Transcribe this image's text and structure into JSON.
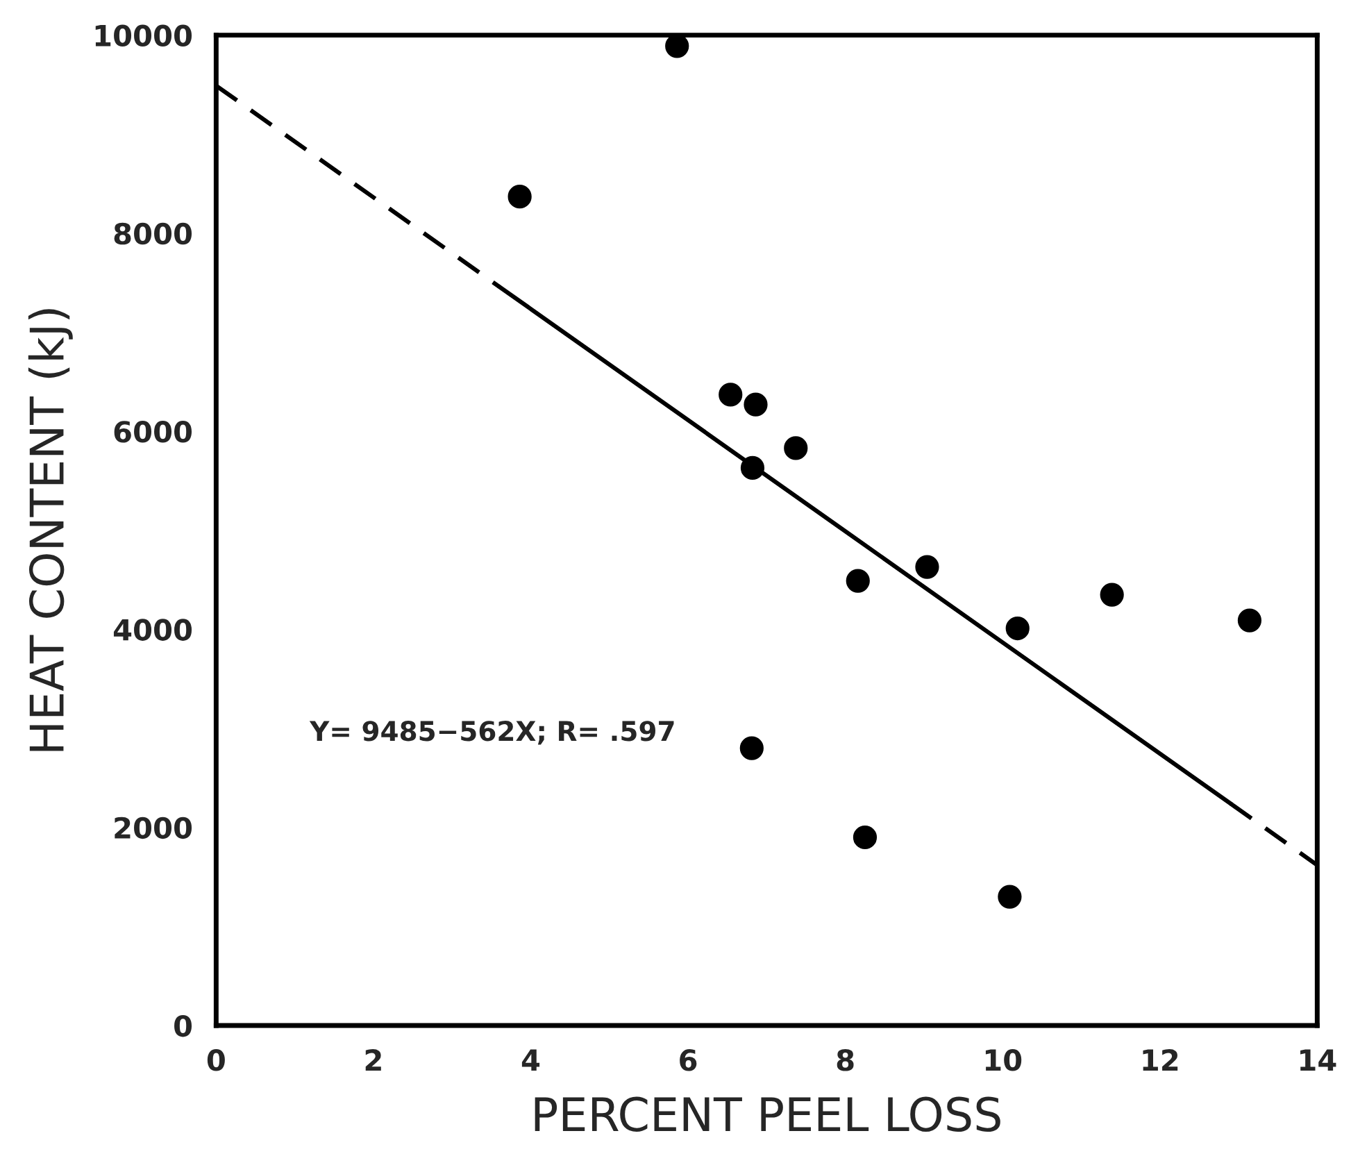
{
  "chart_data": {
    "type": "scatter",
    "xlabel": "PERCENT PEEL LOSS",
    "ylabel": "HEAT CONTENT (kJ)",
    "xlim": [
      0,
      14
    ],
    "xticks": [
      0,
      2,
      4,
      6,
      8,
      10,
      12,
      14
    ],
    "ylim": [
      0,
      10000
    ],
    "yticks": [
      0,
      2000,
      4000,
      6000,
      8000,
      10000
    ],
    "grid": false,
    "marker": "circle",
    "series": [
      {
        "color": "#000000",
        "x": [
          5.86,
          3.86,
          6.54,
          6.86,
          7.37,
          6.82,
          8.16,
          9.04,
          11.39,
          10.19,
          13.14,
          6.81,
          8.25,
          10.09
        ],
        "values": [
          9890,
          8370,
          6370,
          6270,
          5830,
          5630,
          4490,
          4630,
          4350,
          4010,
          4090,
          2800,
          1900,
          1300
        ]
      },
      {
        "type": "line",
        "color": "#000000",
        "line_style": "dashed",
        "marker": "none",
        "x": [
          0,
          3.6
        ],
        "values": [
          9490,
          7460
        ]
      },
      {
        "type": "line",
        "color": "#000000",
        "line_style": "solid",
        "marker": "none",
        "x": [
          3.6,
          12.9
        ],
        "values": [
          7460,
          2240
        ]
      },
      {
        "type": "line",
        "color": "#000000",
        "line_style": "dashed",
        "marker": "none",
        "x": [
          12.9,
          14
        ],
        "values": [
          2240,
          1620
        ]
      }
    ],
    "annotations": [
      "Y= 9485−562X; R= .597"
    ]
  }
}
